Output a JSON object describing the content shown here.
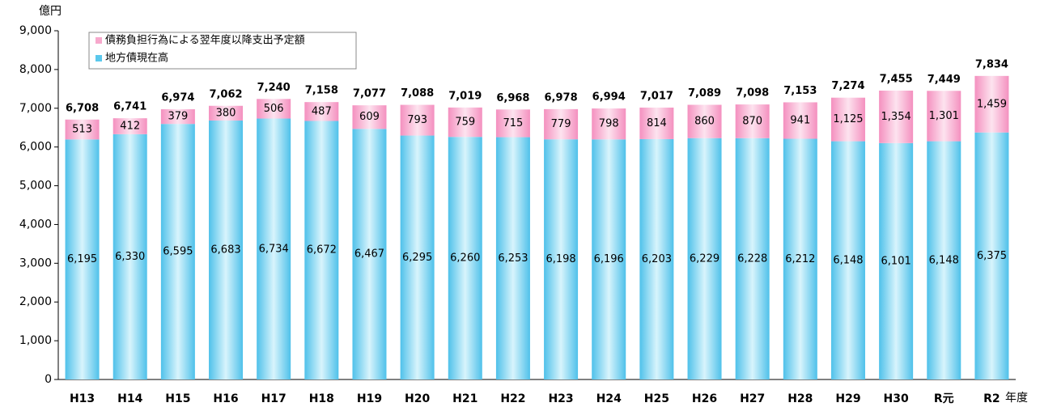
{
  "chart_data": {
    "type": "stacked_bar",
    "y_unit": "億円",
    "x_unit": "年度",
    "categories": [
      "H13",
      "H14",
      "H15",
      "H16",
      "H17",
      "H18",
      "H19",
      "H20",
      "H21",
      "H22",
      "H23",
      "H24",
      "H25",
      "H26",
      "H27",
      "H28",
      "H29",
      "H30",
      "R元",
      "R2"
    ],
    "series": [
      {
        "name": "地方債現在高",
        "color": "#5bc8ec",
        "values": [
          6195,
          6330,
          6595,
          6683,
          6734,
          6672,
          6467,
          6295,
          6260,
          6253,
          6198,
          6196,
          6203,
          6229,
          6228,
          6212,
          6148,
          6101,
          6148,
          6375
        ],
        "value_labels": [
          "6,195",
          "6,330",
          "6,595",
          "6,683",
          "6,734",
          "6,672",
          "6,467",
          "6,295",
          "6,260",
          "6,253",
          "6,198",
          "6,196",
          "6,203",
          "6,229",
          "6,228",
          "6,212",
          "6,148",
          "6,101",
          "6,148",
          "6,375"
        ]
      },
      {
        "name": "債務負担行為による翌年度以降支出予定額",
        "color": "#f7a8cc",
        "values": [
          513,
          412,
          379,
          380,
          506,
          487,
          609,
          793,
          759,
          715,
          779,
          798,
          814,
          860,
          870,
          941,
          1125,
          1354,
          1301,
          1459
        ],
        "value_labels": [
          "513",
          "412",
          "379",
          "380",
          "506",
          "487",
          "609",
          "793",
          "759",
          "715",
          "779",
          "798",
          "814",
          "860",
          "870",
          "941",
          "1,125",
          "1,354",
          "1,301",
          "1,459"
        ]
      }
    ],
    "totals": {
      "values": [
        6708,
        6741,
        6974,
        7062,
        7240,
        7158,
        7077,
        7088,
        7019,
        6968,
        6978,
        6994,
        7017,
        7089,
        7098,
        7153,
        7274,
        7455,
        7449,
        7834
      ],
      "value_labels": [
        "6,708",
        "6,741",
        "6,974",
        "7,062",
        "7,240",
        "7,158",
        "7,077",
        "7,088",
        "7,019",
        "6,968",
        "6,978",
        "6,994",
        "7,017",
        "7,089",
        "7,098",
        "7,153",
        "7,274",
        "7,455",
        "7,449",
        "7,834"
      ]
    },
    "ylim": [
      0,
      9000
    ],
    "yticks": [
      0,
      {
        "value": 1000,
        "label": "1,000"
      },
      {
        "value": 2000,
        "label": "2,000"
      },
      {
        "value": 3000,
        "label": "3,000"
      },
      {
        "value": 4000,
        "label": "4,000"
      },
      {
        "value": 5000,
        "label": "5,000"
      },
      {
        "value": 6000,
        "label": "6,000"
      },
      {
        "value": 7000,
        "label": "7,000"
      },
      {
        "value": 8000,
        "label": "8,000"
      },
      {
        "value": 9000,
        "label": "9,000"
      }
    ],
    "legend": "top-left"
  }
}
